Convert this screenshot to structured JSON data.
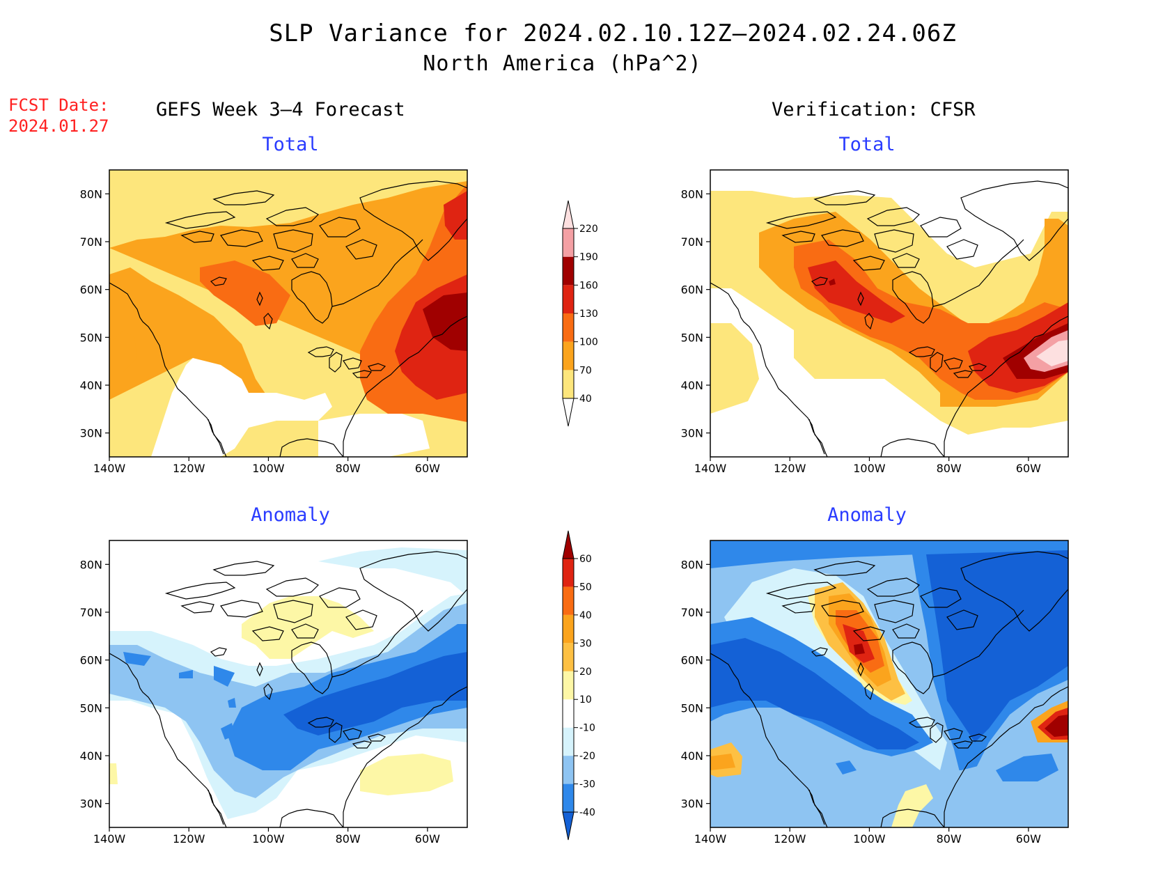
{
  "title": "SLP Variance for 2024.02.10.12Z–2024.02.24.06Z",
  "subtitle": "North America (hPa^2)",
  "fcst_date_label": "FCST Date:",
  "fcst_date_value": "2024.01.27",
  "left_column_title": "GEFS Week 3–4 Forecast",
  "right_column_title": "Verification: CFSR",
  "panels": [
    {
      "id": "gefs-total",
      "title": "Total"
    },
    {
      "id": "cfsr-total",
      "title": "Total"
    },
    {
      "id": "gefs-anomaly",
      "title": "Anomaly"
    },
    {
      "id": "cfsr-anomaly",
      "title": "Anomaly"
    }
  ],
  "axes": {
    "lon_labels": [
      "140W",
      "120W",
      "100W",
      "80W",
      "60W"
    ],
    "lon_values": [
      -140,
      -120,
      -100,
      -80,
      -60
    ],
    "lat_labels": [
      "80N",
      "70N",
      "60N",
      "50N",
      "40N",
      "30N"
    ],
    "lat_values": [
      80,
      70,
      60,
      50,
      40,
      30
    ],
    "lon_range": [
      -140,
      -50
    ],
    "lat_range": [
      25,
      85
    ]
  },
  "colorbars": {
    "total": {
      "levels": [
        "40",
        "70",
        "100",
        "130",
        "160",
        "190",
        "220"
      ],
      "colors": [
        "#ffffff",
        "#fde67c",
        "#fba41d",
        "#f96c13",
        "#df2412",
        "#a00000",
        "#f4a0a4",
        "#fde0e0"
      ]
    },
    "anomaly": {
      "levels": [
        "-40",
        "-30",
        "-20",
        "-10",
        "10",
        "20",
        "30",
        "40",
        "50",
        "60"
      ],
      "colors": [
        "#1461d6",
        "#2f88ea",
        "#8ec4f2",
        "#d6f3fc",
        "#ffffff",
        "#fdf7a6",
        "#fdc043",
        "#fba41d",
        "#f96c13",
        "#df2412",
        "#a00000"
      ]
    }
  }
}
